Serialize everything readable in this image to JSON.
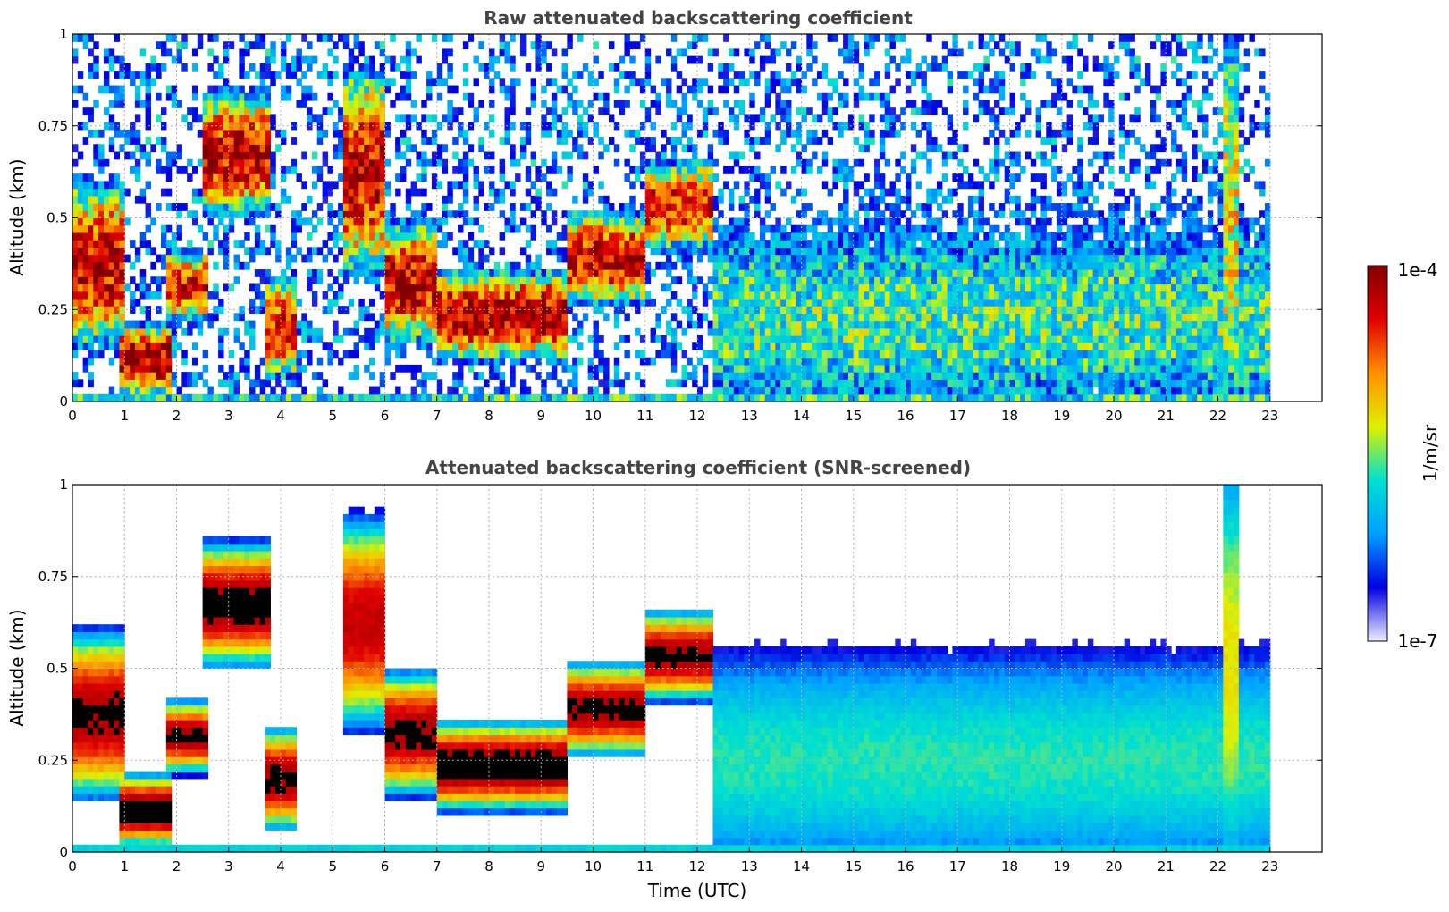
{
  "chart_data": [
    {
      "type": "heatmap",
      "title": "Raw attenuated backscattering coefficient",
      "xlabel": "",
      "ylabel": "Altitude (km)",
      "xlim": [
        0,
        24
      ],
      "ylim": [
        0,
        1
      ],
      "x_ticks": [
        "0",
        "1",
        "2",
        "3",
        "4",
        "5",
        "6",
        "7",
        "8",
        "9",
        "10",
        "11",
        "12",
        "13",
        "14",
        "15",
        "16",
        "17",
        "18",
        "19",
        "20",
        "21",
        "22",
        "23"
      ],
      "y_ticks": [
        "0",
        "0.25",
        "0.5",
        "0.75",
        "1"
      ],
      "grid": true,
      "data_end_time": 23,
      "noise_scale": 0.35,
      "screened": false,
      "features": [
        {
          "t0": 0.0,
          "t1": 1.0,
          "h0": 0.2,
          "h1": 0.55,
          "level": 0.9
        },
        {
          "t0": 0.9,
          "t1": 1.9,
          "h0": 0.05,
          "h1": 0.18,
          "level": 0.95
        },
        {
          "t0": 1.8,
          "t1": 2.6,
          "h0": 0.25,
          "h1": 0.38,
          "level": 0.85
        },
        {
          "t0": 2.5,
          "t1": 3.8,
          "h0": 0.55,
          "h1": 0.8,
          "level": 0.9
        },
        {
          "t0": 3.7,
          "t1": 4.3,
          "h0": 0.1,
          "h1": 0.3,
          "level": 0.85
        },
        {
          "t0": 5.2,
          "t1": 6.0,
          "h0": 0.4,
          "h1": 0.85,
          "level": 0.9
        },
        {
          "t0": 6.0,
          "t1": 7.0,
          "h0": 0.2,
          "h1": 0.45,
          "level": 0.9
        },
        {
          "t0": 7.0,
          "t1": 9.5,
          "h0": 0.15,
          "h1": 0.32,
          "level": 0.95
        },
        {
          "t0": 9.5,
          "t1": 11.0,
          "h0": 0.3,
          "h1": 0.48,
          "level": 0.9
        },
        {
          "t0": 11.0,
          "t1": 12.3,
          "h0": 0.45,
          "h1": 0.62,
          "level": 0.85
        },
        {
          "t0": 12.3,
          "t1": 23.0,
          "h0": 0.0,
          "h1": 0.45,
          "level": 0.45
        },
        {
          "t0": 22.1,
          "t1": 22.4,
          "h0": 0.0,
          "h1": 1.0,
          "level": 0.6
        }
      ]
    },
    {
      "type": "heatmap",
      "title": "Attenuated backscattering coefficient (SNR-screened)",
      "xlabel": "Time (UTC)",
      "ylabel": "Altitude (km)",
      "xlim": [
        0,
        24
      ],
      "ylim": [
        0,
        1
      ],
      "x_ticks": [
        "0",
        "1",
        "2",
        "3",
        "4",
        "5",
        "6",
        "7",
        "8",
        "9",
        "10",
        "11",
        "12",
        "13",
        "14",
        "15",
        "16",
        "17",
        "18",
        "19",
        "20",
        "21",
        "22",
        "23"
      ],
      "y_ticks": [
        "0",
        "0.25",
        "0.5",
        "0.75",
        "1"
      ],
      "grid": true,
      "data_end_time": 23,
      "noise_scale": 0.05,
      "screened": true,
      "features": [
        {
          "t0": 0.0,
          "t1": 1.0,
          "h0": 0.2,
          "h1": 0.55,
          "level": 0.95
        },
        {
          "t0": 0.9,
          "t1": 1.9,
          "h0": 0.05,
          "h1": 0.18,
          "level": 1.0
        },
        {
          "t0": 1.8,
          "t1": 2.6,
          "h0": 0.25,
          "h1": 0.38,
          "level": 0.95
        },
        {
          "t0": 2.5,
          "t1": 3.8,
          "h0": 0.55,
          "h1": 0.8,
          "level": 0.98
        },
        {
          "t0": 3.7,
          "t1": 4.3,
          "h0": 0.1,
          "h1": 0.3,
          "level": 0.95
        },
        {
          "t0": 5.2,
          "t1": 6.0,
          "h0": 0.4,
          "h1": 0.85,
          "level": 0.9
        },
        {
          "t0": 6.0,
          "t1": 7.0,
          "h0": 0.2,
          "h1": 0.45,
          "level": 0.95
        },
        {
          "t0": 7.0,
          "t1": 9.5,
          "h0": 0.15,
          "h1": 0.32,
          "level": 1.0
        },
        {
          "t0": 9.5,
          "t1": 11.0,
          "h0": 0.3,
          "h1": 0.48,
          "level": 0.95
        },
        {
          "t0": 11.0,
          "t1": 12.3,
          "h0": 0.45,
          "h1": 0.62,
          "level": 0.95
        },
        {
          "t0": 12.3,
          "t1": 23.0,
          "h0": 0.0,
          "h1": 0.5,
          "level": 0.45
        },
        {
          "t0": 22.1,
          "t1": 22.4,
          "h0": 0.0,
          "h1": 1.0,
          "level": 0.6
        }
      ]
    }
  ],
  "colorbar": {
    "label": "1/m/sr",
    "max_label": "1e-4",
    "min_label": "1e-7",
    "scale": "log",
    "range": [
      1e-07,
      0.0001
    ],
    "stops": [
      "#eeeeff",
      "#0000e0",
      "#00a0ff",
      "#00e0d0",
      "#e0f000",
      "#ff9000",
      "#e00000",
      "#800000"
    ]
  }
}
